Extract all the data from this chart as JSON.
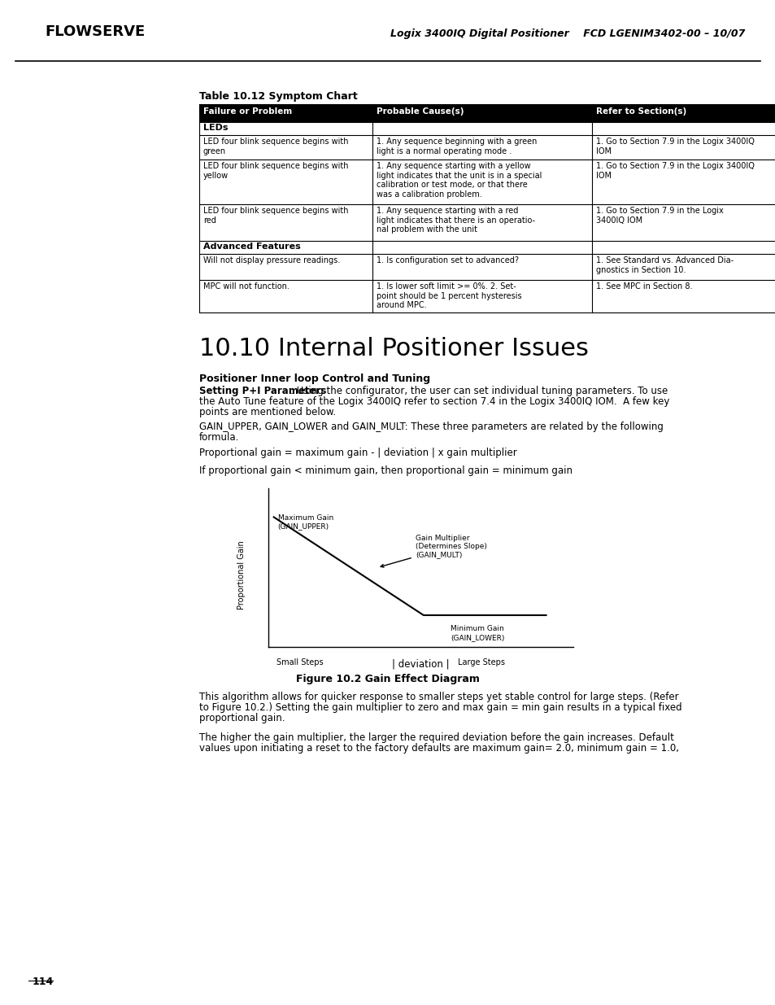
{
  "header_left": "FLOWSERVE",
  "header_right": "Logix 3400IQ Digital Positioner    FCD LGENIM3402-00 – 10/07",
  "table_title": "Table 10.12 Symptom Chart",
  "table_headers": [
    "Failure or Problem",
    "Probable Cause(s)",
    "Refer to Section(s)"
  ],
  "section_leds": "LEDs",
  "section_advanced": "Advanced Features",
  "table_rows": [
    [
      "LED four blink sequence begins with\ngreen",
      "1. Any sequence beginning with a green\nlight is a normal operating mode .",
      "1. Go to Section 7.9 in the Logix 3400IQ\nIOM"
    ],
    [
      "LED four blink sequence begins with\nyellow",
      "1. Any sequence starting with a yellow\nlight indicates that the unit is in a special\ncalibration or test mode, or that there\nwas a calibration problem.",
      "1. Go to Section 7.9 in the Logix 3400IQ\nIOM"
    ],
    [
      "LED four blink sequence begins with\nred",
      "1. Any sequence starting with a red\nlight indicates that there is an operatio-\nnal problem with the unit",
      "1. Go to Section 7.9 in the Logix\n3400IQ IOM"
    ],
    [
      "Will not display pressure readings.",
      "1. Is configuration set to advanced?",
      "1. See Standard vs. Advanced Dia-\ngnostics in Section 10."
    ],
    [
      "MPC will not function.",
      "1. Is lower soft limit >= 0%. 2. Set-\npoint should be 1 percent hysteresis\naround MPC.",
      "1. See MPC in Section 8."
    ]
  ],
  "section_title": "10.10 Internal Positioner Issues",
  "subsection_title": "Positioner Inner loop Control and Tuning",
  "body_text_3": "Proportional gain = maximum gain - | deviation | x gain multiplier",
  "body_text_4": "If proportional gain < minimum gain, then proportional gain = minimum gain",
  "diagram_xlabel": "| deviation |",
  "diagram_ylabel": "Proportional Gain",
  "diagram_small_steps": "Small Steps",
  "diagram_large_steps": "Large Steps",
  "diagram_max_gain_label": "Maximum Gain\n(GAIN_UPPER)",
  "diagram_min_gain_label": "Minimum Gain\n(GAIN_LOWER)",
  "diagram_mult_label": "Gain Multiplier\n(Determines Slope)\n(GAIN_MULT)",
  "fig_caption": "Figure 10.2 Gain Effect Diagram",
  "body_text_5": "This algorithm allows for quicker response to smaller steps yet stable control for large steps. (Refer\nto Figure 10.2.) Setting the gain multiplier to zero and max gain = min gain results in a typical fixed\nproportional gain.",
  "body_text_6": "The higher the gain multiplier, the larger the required deviation before the gain increases. Default\nvalues upon initiating a reset to the factory defaults are maximum gain= 2.0, minimum gain = 1.0,",
  "page_number": "114",
  "bg_color": "#ffffff",
  "table_header_bg": "#000000",
  "table_header_fg": "#ffffff",
  "table_border_color": "#000000"
}
